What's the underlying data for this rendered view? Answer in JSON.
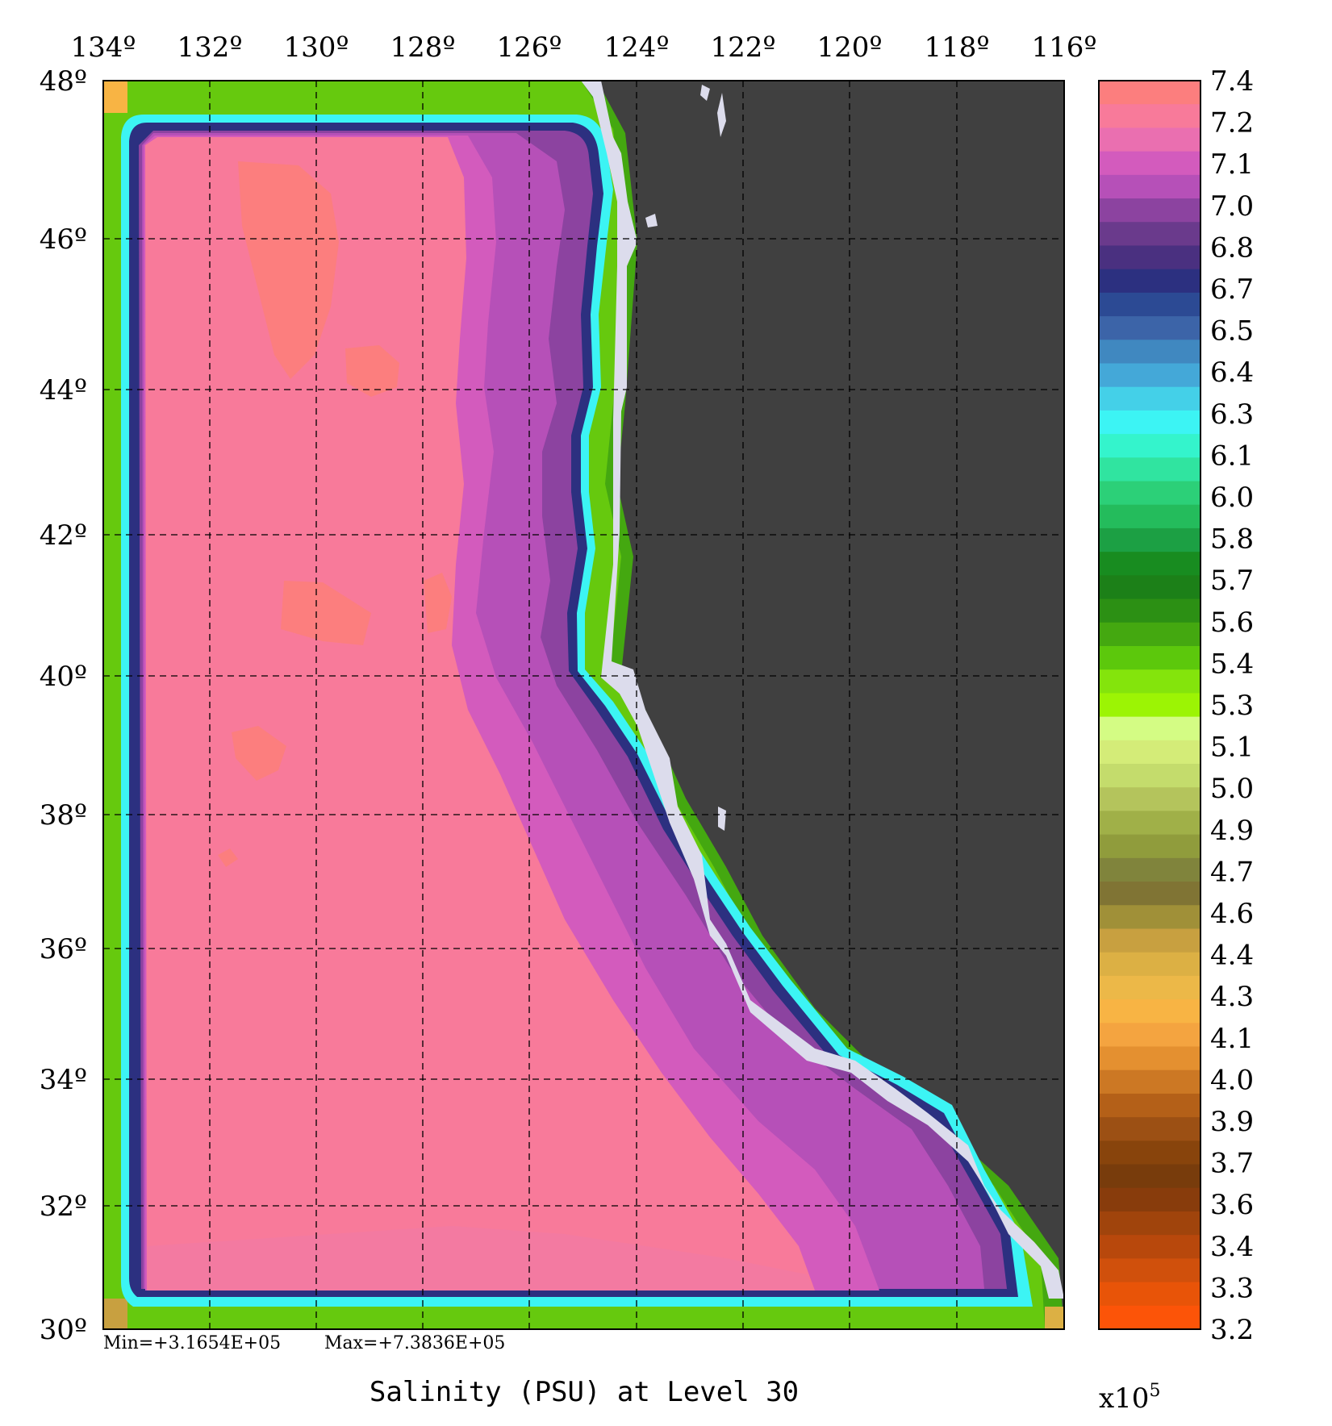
{
  "map": {
    "title": "Salinity (PSU) at Level 30",
    "stats": {
      "min": "Min=+3.1654E+05",
      "max": "Max=+7.3836E+05"
    },
    "lon_labels": [
      "134º",
      "132º",
      "130º",
      "128º",
      "126º",
      "124º",
      "122º",
      "120º",
      "118º",
      "116º"
    ],
    "lat_labels": [
      "48º",
      "46º",
      "44º",
      "42º",
      "40º",
      "38º",
      "36º",
      "34º",
      "32º",
      "30º"
    ],
    "land_color": "#404040",
    "coast_fringe_color": "#dcdcec"
  },
  "colorbar": {
    "labels": [
      "7.4",
      "7.2",
      "7.1",
      "7.0",
      "6.8",
      "6.7",
      "6.5",
      "6.4",
      "6.3",
      "6.1",
      "6.0",
      "5.8",
      "5.7",
      "5.6",
      "5.4",
      "5.3",
      "5.1",
      "5.0",
      "4.9",
      "4.7",
      "4.6",
      "4.4",
      "4.3",
      "4.1",
      "4.0",
      "3.9",
      "3.7",
      "3.6",
      "3.4",
      "3.3",
      "3.2"
    ],
    "scale": "x10",
    "exponent": "5",
    "colors": [
      "#fc7e7e",
      "#f87a9a",
      "#ea6fb0",
      "#d35bbd",
      "#b650b8",
      "#8c43a0",
      "#6a3a8c",
      "#4a3080",
      "#2c3080",
      "#2c4a94",
      "#3c64a8",
      "#4088c0",
      "#44a8d8",
      "#44d0e8",
      "#3cf4f4",
      "#34f4cc",
      "#30e4a0",
      "#2cd078",
      "#24bc5c",
      "#1ca044",
      "#188c20",
      "#1c8018",
      "#2c9014",
      "#44a810",
      "#5cc80c",
      "#84e40c",
      "#9cf404",
      "#d4fc84",
      "#d4ec78",
      "#c4dc6c",
      "#b4c45c",
      "#a0b048",
      "#909c3c",
      "#80843c",
      "#807434",
      "#a09038",
      "#c8a040",
      "#dcb044",
      "#ecb848",
      "#f8b444",
      "#f4a440",
      "#e49030",
      "#cc7824",
      "#b46018",
      "#9c5014",
      "#88440c",
      "#783c0c",
      "#883c0c",
      "#a0440c",
      "#b8480c",
      "#d0500c",
      "#e85408",
      "#fc5408"
    ]
  }
}
